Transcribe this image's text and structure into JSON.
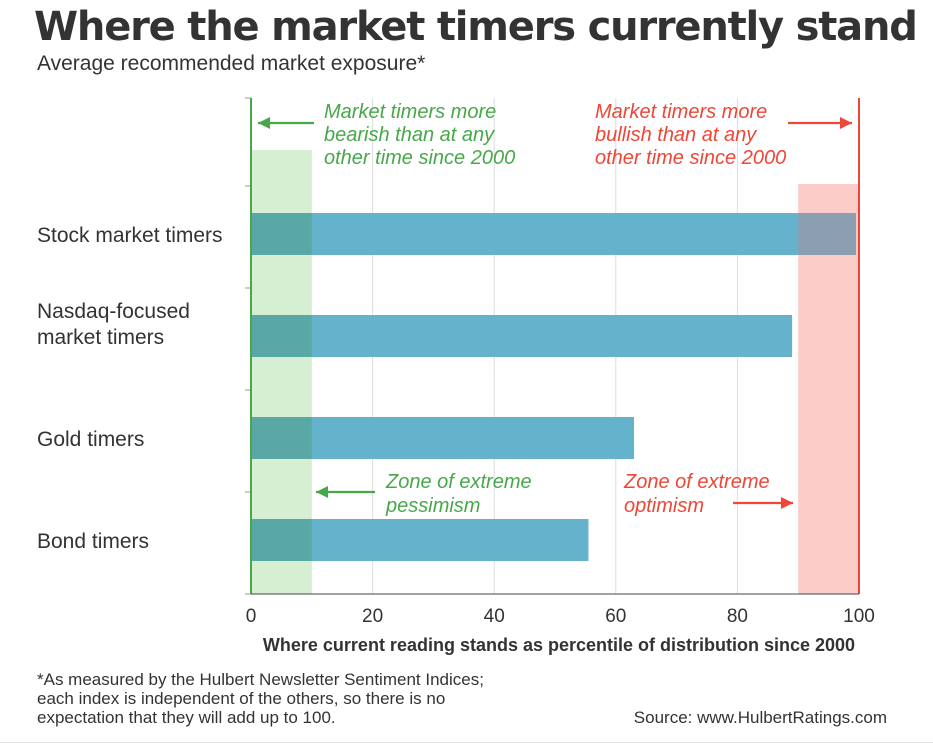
{
  "title": "Where the market timers currently stand",
  "subtitle": "Average recommended market exposure*",
  "footnote": "*As measured by the Hulbert Newsletter Sentiment Indices;\neach index is independent of the others, so there is no\nexpectation that they will add up to 100.",
  "source": "Source: www.HulbertRatings.com",
  "colors": {
    "bar": "#65b2cd",
    "bar_in_green_zone": "#5aa8a6",
    "bar_in_red_zone": "#8b9fb0",
    "green_zone": "#d6efd2",
    "red_zone": "#fcccc8",
    "green": "#47a84a",
    "red": "#ee4637",
    "grid": "#dcdcdc",
    "text": "#333333"
  },
  "chart_data": {
    "type": "bar",
    "orientation": "horizontal",
    "categories": [
      [
        "Stock market timers"
      ],
      [
        "Nasdaq-focused",
        "market timers"
      ],
      [
        "Gold timers"
      ],
      [
        "Bond timers"
      ]
    ],
    "values": [
      99.5,
      89,
      63,
      55.5
    ],
    "xlabel": "Where current reading stands as percentile of distribution since 2000",
    "xlim": [
      0,
      100
    ],
    "xticks": [
      0,
      20,
      40,
      60,
      80,
      100
    ],
    "grid": true,
    "zones": [
      {
        "name": "pessimism",
        "from": 0,
        "to": 10
      },
      {
        "name": "optimism",
        "from": 90,
        "to": 100
      }
    ],
    "annotations": {
      "bearish": [
        "Market timers more",
        "bearish than at any",
        "other time since 2000"
      ],
      "bullish": [
        "Market timers more",
        "bullish than at any",
        "other time since 2000"
      ],
      "pessimism": [
        "Zone of extreme",
        "pessimism"
      ],
      "optimism": [
        "Zone of extreme",
        "optimism"
      ]
    }
  }
}
